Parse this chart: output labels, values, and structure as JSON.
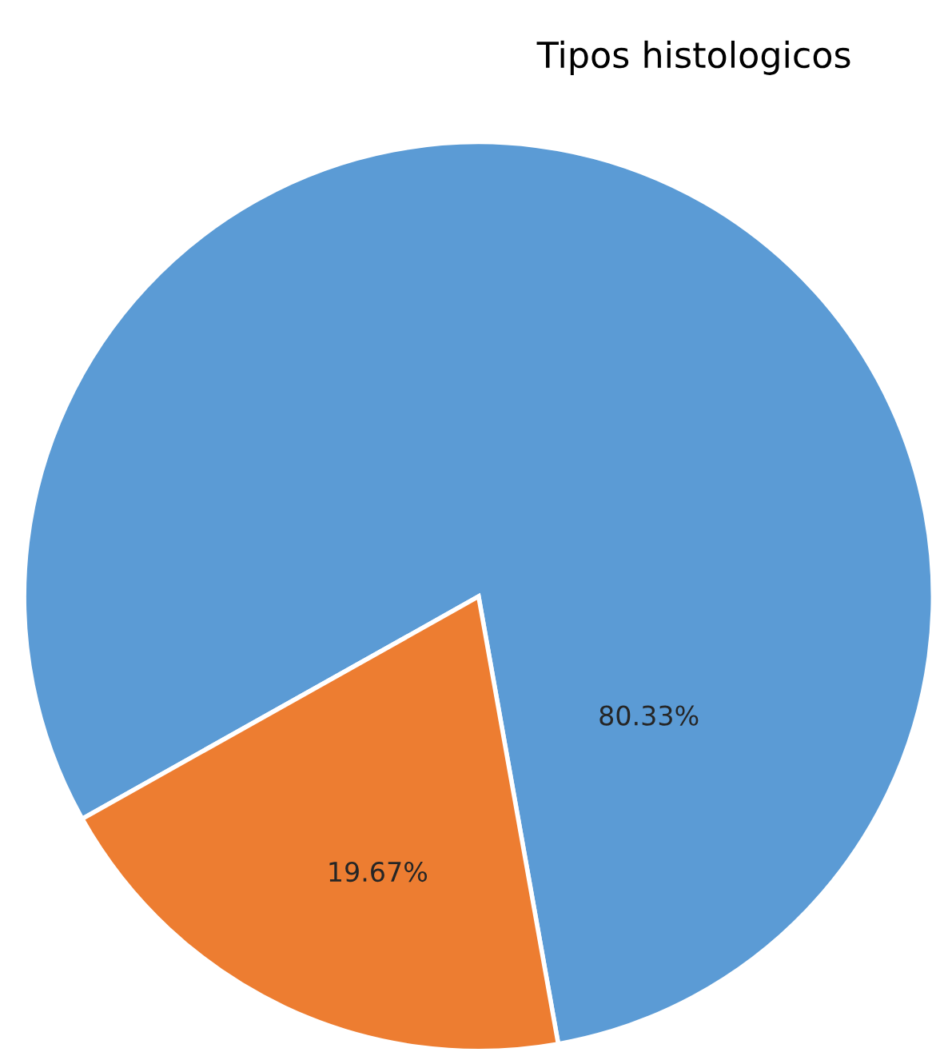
{
  "chart_data": {
    "type": "pie",
    "title": "Tipos histologicos",
    "categories": [
      null,
      null
    ],
    "values": [
      80.33,
      19.67
    ],
    "colors": [
      "#5b9bd5",
      "#ed7d31"
    ],
    "value_labels": [
      "80.33%",
      "19.67%"
    ],
    "legend": false
  }
}
